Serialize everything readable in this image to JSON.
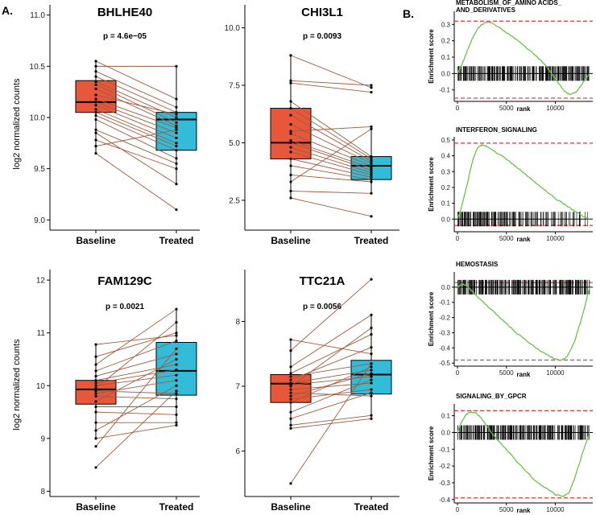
{
  "panel_labels": {
    "a": "A.",
    "b": "B."
  },
  "colors": {
    "baseline": "#e8573a",
    "treated": "#33bcd8",
    "pair_line": "#a05a3c",
    "gsea_curve": "#6cc24a",
    "dashed": "#d23a3a"
  },
  "chart_data": [
    {
      "type": "boxplot",
      "title": "BHLHE40",
      "p_label": "p = 4.6e−05",
      "ylabel": "log2 normalized counts",
      "categories": [
        "Baseline",
        "Treated"
      ],
      "ylim": [
        8.9,
        11.1
      ],
      "yticks": [
        9.0,
        9.5,
        10.0,
        10.5,
        11.0
      ],
      "ytick_labels": [
        "9.0",
        "9.5",
        "10.0",
        "10.5",
        "11.0"
      ],
      "boxes": [
        {
          "name": "Baseline",
          "q1": 10.05,
          "median": 10.15,
          "q3": 10.36,
          "whisker_low": 9.65,
          "whisker_high": 10.55
        },
        {
          "name": "Treated",
          "q1": 9.68,
          "median": 9.98,
          "q3": 10.05,
          "whisker_low": 9.35,
          "whisker_high": 10.5
        }
      ],
      "pairs": [
        [
          10.55,
          10.18
        ],
        [
          10.5,
          10.5
        ],
        [
          10.45,
          10.1
        ],
        [
          10.4,
          10.05
        ],
        [
          10.35,
          10.0
        ],
        [
          10.32,
          9.95
        ],
        [
          10.28,
          9.92
        ],
        [
          10.22,
          10.03
        ],
        [
          10.18,
          9.9
        ],
        [
          10.15,
          9.85
        ],
        [
          10.12,
          9.8
        ],
        [
          10.08,
          9.75
        ],
        [
          10.05,
          9.72
        ],
        [
          10.02,
          9.68
        ],
        [
          9.98,
          9.6
        ],
        [
          9.88,
          9.55
        ],
        [
          9.85,
          9.35
        ],
        [
          9.78,
          9.5
        ],
        [
          9.72,
          9.88
        ],
        [
          9.65,
          9.1
        ]
      ]
    },
    {
      "type": "boxplot",
      "title": "CHI3L1",
      "p_label": "p = 0.0093",
      "ylabel": "",
      "categories": [
        "Baseline",
        "Treated"
      ],
      "ylim": [
        1.2,
        11.0
      ],
      "yticks": [
        2.5,
        5.0,
        7.5,
        10.0
      ],
      "ytick_labels": [
        "2.5",
        "5.0",
        "7.5",
        "10.0"
      ],
      "boxes": [
        {
          "name": "Baseline",
          "q1": 4.3,
          "median": 5.0,
          "q3": 6.5,
          "whisker_low": 2.6,
          "whisker_high": 8.8
        },
        {
          "name": "Treated",
          "q1": 3.4,
          "median": 4.0,
          "q3": 4.4,
          "whisker_low": 2.8,
          "whisker_high": 5.7
        }
      ],
      "pairs": [
        [
          8.8,
          7.4
        ],
        [
          7.7,
          7.5
        ],
        [
          7.6,
          7.2
        ],
        [
          6.8,
          4.4
        ],
        [
          6.5,
          4.3
        ],
        [
          6.2,
          4.2
        ],
        [
          5.8,
          4.1
        ],
        [
          5.5,
          5.7
        ],
        [
          5.4,
          4.0
        ],
        [
          5.1,
          3.9
        ],
        [
          5.0,
          3.8
        ],
        [
          4.8,
          3.7
        ],
        [
          4.6,
          3.6
        ],
        [
          4.3,
          3.5
        ],
        [
          4.0,
          3.4
        ],
        [
          3.6,
          3.3
        ],
        [
          3.3,
          5.6
        ],
        [
          2.9,
          2.8
        ],
        [
          2.6,
          1.8
        ]
      ]
    },
    {
      "type": "boxplot",
      "title": "FAM129C",
      "p_label": "p = 0.0021",
      "ylabel": "log2 normalized counts",
      "categories": [
        "Baseline",
        "Treated"
      ],
      "ylim": [
        7.9,
        12.2
      ],
      "yticks": [
        8,
        9,
        10,
        11,
        12
      ],
      "ytick_labels": [
        "8",
        "9",
        "10",
        "11",
        "12"
      ],
      "boxes": [
        {
          "name": "Baseline",
          "q1": 9.65,
          "median": 9.93,
          "q3": 10.1,
          "whisker_low": 9.0,
          "whisker_high": 10.78
        },
        {
          "name": "Treated",
          "q1": 9.82,
          "median": 10.28,
          "q3": 10.82,
          "whisker_low": 9.25,
          "whisker_high": 11.45
        }
      ],
      "pairs": [
        [
          10.78,
          10.95
        ],
        [
          10.55,
          11.0
        ],
        [
          10.4,
          11.45
        ],
        [
          10.28,
          10.85
        ],
        [
          10.18,
          10.6
        ],
        [
          10.1,
          10.4
        ],
        [
          10.05,
          10.3
        ],
        [
          10.0,
          10.2
        ],
        [
          9.95,
          11.2
        ],
        [
          9.9,
          9.85
        ],
        [
          9.85,
          10.1
        ],
        [
          9.8,
          9.75
        ],
        [
          9.7,
          10.5
        ],
        [
          9.6,
          9.6
        ],
        [
          9.5,
          9.45
        ],
        [
          9.3,
          9.3
        ],
        [
          9.15,
          10.0
        ],
        [
          9.0,
          9.25
        ],
        [
          8.85,
          10.7
        ],
        [
          8.45,
          9.9
        ]
      ]
    },
    {
      "type": "boxplot",
      "title": "TTC21A",
      "p_label": "p = 0.0056",
      "ylabel": "",
      "categories": [
        "Baseline",
        "Treated"
      ],
      "ylim": [
        5.3,
        8.8
      ],
      "yticks": [
        6,
        7,
        8
      ],
      "ytick_labels": [
        "6",
        "7",
        "8"
      ],
      "boxes": [
        {
          "name": "Baseline",
          "q1": 6.75,
          "median": 7.04,
          "q3": 7.18,
          "whisker_low": 6.35,
          "whisker_high": 7.72
        },
        {
          "name": "Treated",
          "q1": 6.88,
          "median": 7.18,
          "q3": 7.4,
          "whisker_low": 6.5,
          "whisker_high": 8.12
        }
      ],
      "pairs": [
        [
          7.72,
          7.5
        ],
        [
          7.55,
          8.65
        ],
        [
          7.3,
          8.1
        ],
        [
          7.2,
          7.8
        ],
        [
          7.15,
          7.35
        ],
        [
          7.1,
          7.6
        ],
        [
          7.05,
          7.25
        ],
        [
          7.02,
          7.15
        ],
        [
          7.0,
          7.9
        ],
        [
          6.95,
          7.05
        ],
        [
          6.9,
          6.85
        ],
        [
          6.85,
          7.2
        ],
        [
          6.8,
          6.95
        ],
        [
          6.75,
          7.3
        ],
        [
          6.6,
          7.1
        ],
        [
          6.5,
          6.9
        ],
        [
          6.4,
          6.55
        ],
        [
          6.35,
          6.5
        ],
        [
          5.5,
          7.35
        ]
      ]
    }
  ],
  "gsea": [
    {
      "title_lines": [
        "METABOLISM_OF_AMINO ACIDS_",
        "AND_DERIVATIVES"
      ],
      "ylabel": "Enrichment score",
      "xlabel": "rank",
      "ylim": [
        -0.17,
        0.38
      ],
      "yticks": [
        -0.1,
        0.0,
        0.1,
        0.2,
        0.3
      ],
      "ytick_labels": [
        "-0.1",
        "0.0",
        "0.1",
        "0.2",
        "0.3"
      ],
      "xmax": 13500,
      "xticks": [
        0,
        5000,
        10000
      ],
      "xtick_labels": [
        "0",
        "5000",
        "10000"
      ],
      "max_es": 0.32,
      "min_es": -0.15,
      "curve": [
        [
          0,
          0
        ],
        [
          500,
          0.06
        ],
        [
          1000,
          0.14
        ],
        [
          1500,
          0.21
        ],
        [
          2000,
          0.27
        ],
        [
          2500,
          0.3
        ],
        [
          3000,
          0.315
        ],
        [
          3500,
          0.31
        ],
        [
          4000,
          0.29
        ],
        [
          5000,
          0.25
        ],
        [
          6000,
          0.21
        ],
        [
          7000,
          0.16
        ],
        [
          8000,
          0.11
        ],
        [
          9000,
          0.05
        ],
        [
          10000,
          -0.03
        ],
        [
          10800,
          -0.1
        ],
        [
          11500,
          -0.13
        ],
        [
          12200,
          -0.11
        ],
        [
          13000,
          -0.04
        ],
        [
          13500,
          0
        ]
      ],
      "bar_density": [
        1,
        1,
        1,
        1,
        1,
        1,
        1,
        1,
        1,
        1,
        1,
        1,
        1,
        1,
        1,
        1,
        1,
        1,
        1,
        1
      ]
    },
    {
      "title_lines": [
        "INTERFERON_SIGNALING"
      ],
      "ylabel": "Enrichment score",
      "xlabel": "rank",
      "ylim": [
        -0.08,
        0.52
      ],
      "yticks": [
        0.0,
        0.1,
        0.2,
        0.3,
        0.4,
        0.5
      ],
      "ytick_labels": [
        "0.0",
        "0.1",
        "0.2",
        "0.3",
        "0.4",
        "0.5"
      ],
      "xmax": 13500,
      "xticks": [
        0,
        5000,
        10000
      ],
      "xtick_labels": [
        "0",
        "5000",
        "10000"
      ],
      "max_es": 0.48,
      "min_es": -0.04,
      "curve": [
        [
          0,
          0
        ],
        [
          300,
          0.05
        ],
        [
          700,
          0.15
        ],
        [
          1000,
          0.22
        ],
        [
          1300,
          0.31
        ],
        [
          1600,
          0.38
        ],
        [
          1900,
          0.43
        ],
        [
          2200,
          0.46
        ],
        [
          2600,
          0.47
        ],
        [
          3000,
          0.46
        ],
        [
          4000,
          0.42
        ],
        [
          5000,
          0.38
        ],
        [
          6000,
          0.33
        ],
        [
          7000,
          0.28
        ],
        [
          8000,
          0.23
        ],
        [
          9000,
          0.18
        ],
        [
          10000,
          0.13
        ],
        [
          11000,
          0.09
        ],
        [
          12000,
          0.05
        ],
        [
          13000,
          0.01
        ],
        [
          13500,
          0
        ]
      ],
      "bar_density": [
        1,
        1,
        1,
        1,
        0.9,
        0.9,
        0.8,
        0.8,
        0.7,
        0.7,
        0.6,
        0.6,
        0.5,
        0.5,
        0.5,
        0.4,
        0.4,
        0.3,
        0.3,
        0.2
      ]
    },
    {
      "title_lines": [
        "HEMOSTASIS"
      ],
      "ylabel": "Enrichment score",
      "xlabel": "rank",
      "ylim": [
        -0.52,
        0.1
      ],
      "yticks": [
        -0.5,
        -0.4,
        -0.3,
        -0.2,
        -0.1,
        0.0
      ],
      "ytick_labels": [
        "-0.5",
        "-0.4",
        "-0.3",
        "-0.2",
        "-0.1",
        "0.0"
      ],
      "xmax": 13500,
      "xticks": [
        0,
        5000,
        10000
      ],
      "xtick_labels": [
        "0",
        "5000",
        "10000"
      ],
      "max_es": 0.03,
      "min_es": -0.48,
      "curve": [
        [
          0,
          0
        ],
        [
          500,
          0.02
        ],
        [
          1000,
          0.01
        ],
        [
          2000,
          -0.06
        ],
        [
          3000,
          -0.12
        ],
        [
          4000,
          -0.18
        ],
        [
          5000,
          -0.24
        ],
        [
          6000,
          -0.3
        ],
        [
          7000,
          -0.35
        ],
        [
          8000,
          -0.4
        ],
        [
          9000,
          -0.44
        ],
        [
          10000,
          -0.475
        ],
        [
          10600,
          -0.48
        ],
        [
          11200,
          -0.46
        ],
        [
          12000,
          -0.35
        ],
        [
          12800,
          -0.18
        ],
        [
          13500,
          0
        ]
      ],
      "bar_density": [
        1,
        1,
        1,
        1,
        1,
        1,
        1,
        1,
        1,
        1,
        1,
        1,
        1,
        1,
        1,
        1,
        1,
        1,
        1,
        1
      ]
    },
    {
      "title_lines": [
        "SIGNALING_BY_GPCR"
      ],
      "ylabel": "Enrichment score",
      "xlabel": "rank",
      "ylim": [
        -0.42,
        0.17
      ],
      "yticks": [
        -0.4,
        -0.3,
        -0.2,
        -0.1,
        0.0,
        0.1
      ],
      "ytick_labels": [
        "-0.4",
        "-0.3",
        "-0.2",
        "-0.1",
        "0.0",
        "0.1"
      ],
      "xmax": 13500,
      "xticks": [
        0,
        5000,
        10000
      ],
      "xtick_labels": [
        "0",
        "5000",
        "10000"
      ],
      "max_es": 0.13,
      "min_es": -0.39,
      "curve": [
        [
          0,
          0
        ],
        [
          400,
          0.06
        ],
        [
          800,
          0.1
        ],
        [
          1200,
          0.12
        ],
        [
          1800,
          0.12
        ],
        [
          2400,
          0.09
        ],
        [
          3000,
          0.04
        ],
        [
          4000,
          -0.04
        ],
        [
          5000,
          -0.1
        ],
        [
          6000,
          -0.17
        ],
        [
          7000,
          -0.23
        ],
        [
          8000,
          -0.29
        ],
        [
          9000,
          -0.33
        ],
        [
          10000,
          -0.37
        ],
        [
          10800,
          -0.38
        ],
        [
          11400,
          -0.36
        ],
        [
          12000,
          -0.27
        ],
        [
          12800,
          -0.12
        ],
        [
          13500,
          0
        ]
      ],
      "bar_density": [
        1,
        1,
        1,
        1,
        1,
        1,
        1,
        1,
        1,
        1,
        1,
        1,
        1,
        1,
        1,
        1,
        1,
        1,
        1,
        1
      ]
    }
  ]
}
